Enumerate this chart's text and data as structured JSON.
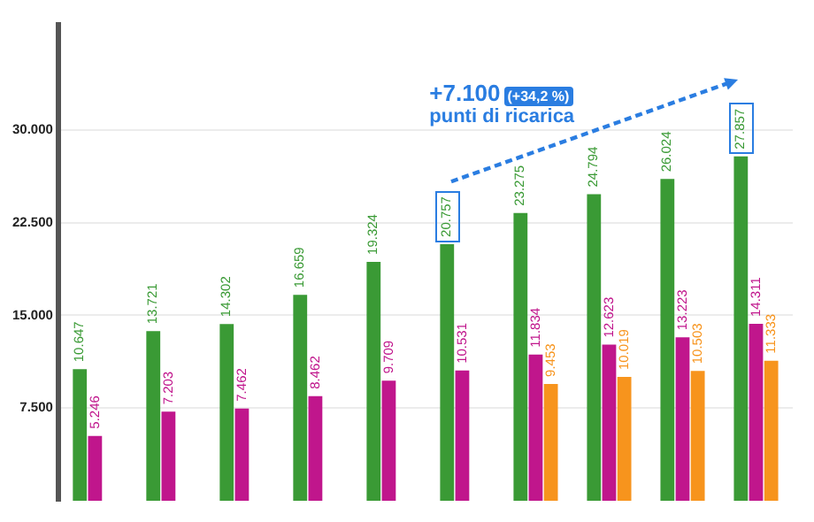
{
  "chart_data": {
    "type": "bar",
    "categories": [
      null,
      null,
      null,
      null,
      null,
      null,
      null,
      null,
      null,
      null
    ],
    "series": [
      {
        "color": "#3a9a35",
        "values": [
          10647,
          13721,
          14302,
          16659,
          19324,
          20757,
          23275,
          24794,
          26024,
          27857
        ],
        "value_labels": [
          "10.647",
          "13.721",
          "14.302",
          "16.659",
          "19.324",
          "20.757",
          "23.275",
          "24.794",
          "26.024",
          "27.857"
        ]
      },
      {
        "color": "#c0168c",
        "values": [
          5246,
          7203,
          7462,
          8462,
          9709,
          10531,
          11834,
          12623,
          13223,
          14311
        ],
        "value_labels": [
          "5.246",
          "7.203",
          "7.462",
          "8.462",
          "9.709",
          "10.531",
          "11.834",
          "12.623",
          "13.223",
          "14.311"
        ]
      },
      {
        "color": "#f7941d",
        "values": [
          null,
          null,
          null,
          null,
          null,
          null,
          9453,
          10019,
          10503,
          11333
        ],
        "value_labels": [
          null,
          null,
          null,
          null,
          null,
          null,
          "9.453",
          "10.019",
          "10.503",
          "11.333"
        ]
      }
    ],
    "ylim": [
      0,
      38500
    ],
    "yticks": [
      {
        "value": 7500,
        "label": "7.500"
      },
      {
        "value": 15000,
        "label": "15.000"
      },
      {
        "value": 22500,
        "label": "22.500"
      },
      {
        "value": 30000,
        "label": "30.000"
      }
    ],
    "grid": "y",
    "legend": false,
    "tick_labels": "y",
    "annotations": [
      "+7.100",
      "(+34,2 %)",
      "punti di ricarica"
    ]
  }
}
